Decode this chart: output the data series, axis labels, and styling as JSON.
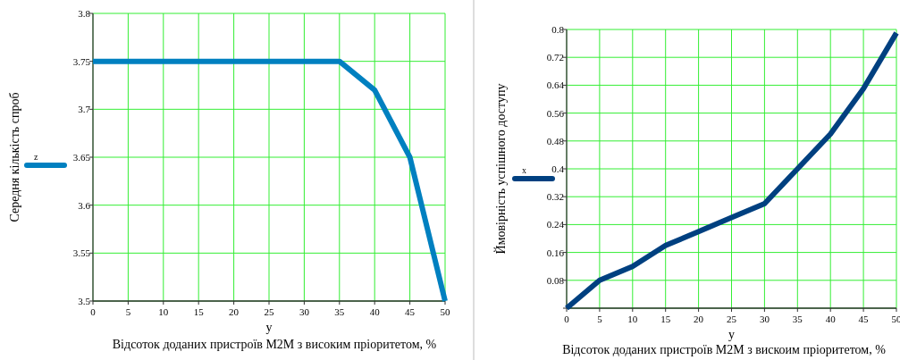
{
  "chart_data": [
    {
      "type": "line",
      "xlabel": "y",
      "ylabel": "Середня кількість спроб",
      "annotations": [
        "Відсоток доданих пристроїв M2M з високим пріоритетом, %"
      ],
      "x": [
        0,
        5,
        10,
        15,
        20,
        25,
        30,
        35,
        40,
        45,
        50
      ],
      "series": [
        {
          "name": "z",
          "color": "#0080c0",
          "values": [
            3.75,
            3.75,
            3.75,
            3.75,
            3.75,
            3.75,
            3.75,
            3.75,
            3.72,
            3.65,
            3.5
          ]
        }
      ],
      "xlim": [
        0,
        50
      ],
      "xticks": [
        0,
        5,
        10,
        15,
        20,
        25,
        30,
        35,
        40,
        45,
        50
      ],
      "ylim": [
        3.5,
        3.8
      ],
      "yticks": [
        3.5,
        3.55,
        3.6,
        3.65,
        3.7,
        3.75,
        3.8
      ],
      "grid": true,
      "legend": "left",
      "marker": "none",
      "line_style": "solid"
    },
    {
      "type": "line",
      "xlabel": "y",
      "ylabel": "Ймовірність успішного доступу",
      "annotations": [
        "Відсоток доданих пристроїв M2M з вискоим пріоритетом, %"
      ],
      "x": [
        0,
        5,
        10,
        15,
        20,
        25,
        30,
        35,
        40,
        45,
        50
      ],
      "series": [
        {
          "name": "x",
          "color": "#004080",
          "values": [
            0,
            0.08,
            0.12,
            0.18,
            0.22,
            0.26,
            0.3,
            0.4,
            0.5,
            0.63,
            0.79
          ]
        }
      ],
      "xlim": [
        0,
        50
      ],
      "xticks": [
        0,
        5,
        10,
        15,
        20,
        25,
        30,
        35,
        40,
        45,
        50
      ],
      "ylim": [
        0,
        0.8
      ],
      "yticks": [
        {
          "value": 0,
          "label": null
        },
        0.08,
        0.16,
        0.24,
        0.32,
        0.4,
        0.48,
        0.56,
        0.64,
        0.72,
        0.8
      ],
      "grid": true,
      "legend": "left",
      "marker": "none",
      "line_style": "solid"
    }
  ]
}
